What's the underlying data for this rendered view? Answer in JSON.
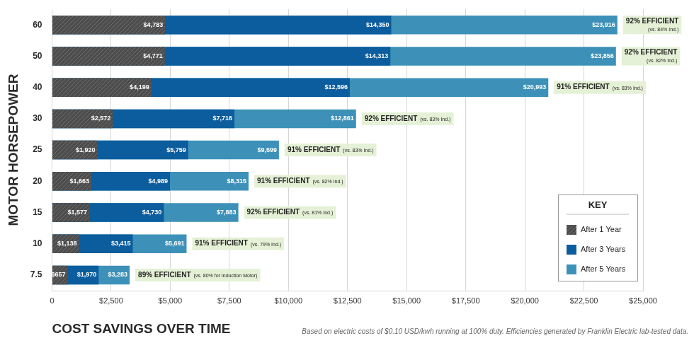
{
  "chart_data": {
    "type": "bar",
    "orientation": "horizontal",
    "stacked": false,
    "data_labels": true,
    "grid": true,
    "legend": "lower right",
    "legend_title": "KEY",
    "x_label": "COST SAVINGS OVER TIME",
    "y_label": "MOTOR HORSEPOWER",
    "note": "Based on electric costs of $0.10 USD/kwh running at 100% duty. Efficiencies generated by Franklin Electric lab-tested data.",
    "categories": [
      "60",
      "50",
      "40",
      "30",
      "25",
      "20",
      "15",
      "10",
      "7.5"
    ],
    "series": [
      {
        "name": "After 1 Year",
        "color": "#4d4d4d",
        "values": [
          4783,
          4771,
          4199,
          2572,
          1920,
          1663,
          1577,
          1138,
          657
        ],
        "value_labels": [
          "$4,783",
          "$4,771",
          "$4,199",
          "$2,572",
          "$1,920",
          "$1,663",
          "$1,577",
          "$1,138",
          "$657"
        ]
      },
      {
        "name": "After 3 Years",
        "color": "#0b5d9e",
        "values": [
          14350,
          14313,
          12596,
          7716,
          5759,
          4989,
          4730,
          3415,
          1970
        ],
        "value_labels": [
          "$14,350",
          "$14,313",
          "$12,596",
          "$7,716",
          "$5,759",
          "$4,989",
          "$4,730",
          "$3,415",
          "$1,970"
        ]
      },
      {
        "name": "After 5 Years",
        "color": "#3d91b8",
        "values": [
          23916,
          23856,
          20993,
          12861,
          9599,
          8315,
          7883,
          5691,
          3283
        ],
        "value_labels": [
          "$23,916",
          "$23,856",
          "$20,993",
          "$12,861",
          "$9,599",
          "$8,315",
          "$7,883",
          "$5,691",
          "$3,283"
        ]
      }
    ],
    "annotations": [
      {
        "text": "92% EFFICIENT",
        "note": "(vs. 84% Ind.)"
      },
      {
        "text": "92% EFFICIENT",
        "note": "(vs. 82% Ind.)"
      },
      {
        "text": "91% EFFICIENT",
        "note": "(vs. 83% Ind.)"
      },
      {
        "text": "92% EFFICIENT",
        "note": "(vs. 83% Ind.)"
      },
      {
        "text": "91% EFFICIENT",
        "note": "(vs. 83% Ind.)"
      },
      {
        "text": "91% EFFICIENT",
        "note": "(vs. 82% Ind.)"
      },
      {
        "text": "92% EFFICIENT",
        "note": "(vs. 81% Ind.)"
      },
      {
        "text": "91% EFFICIENT",
        "note": "(vs. 79% Ind.)"
      },
      {
        "text": "89% EFFICIENT",
        "note": "(vs. 80% for Induction Motor)"
      }
    ],
    "xlim": [
      0,
      25000
    ],
    "xticks": [
      0,
      {
        "value": 2500,
        "label": "$2,500"
      },
      {
        "value": 5000,
        "label": "$5,000"
      },
      {
        "value": 7500,
        "label": "$7,500"
      },
      {
        "value": 10000,
        "label": "$10,000"
      },
      {
        "value": 12500,
        "label": "$12,500"
      },
      {
        "value": 15000,
        "label": "$15,000"
      },
      {
        "value": 17500,
        "label": "$17,500"
      },
      {
        "value": 20000,
        "label": "$20,000"
      },
      {
        "value": 22500,
        "label": "$22,500"
      },
      {
        "value": 25000,
        "label": "$25,000"
      }
    ]
  }
}
